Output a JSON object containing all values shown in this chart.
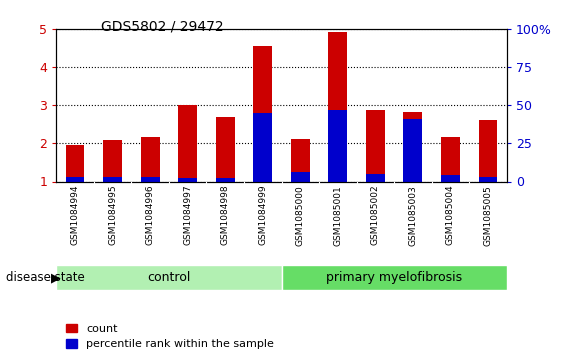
{
  "title": "GDS5802 / 29472",
  "samples": [
    "GSM1084994",
    "GSM1084995",
    "GSM1084996",
    "GSM1084997",
    "GSM1084998",
    "GSM1084999",
    "GSM1085000",
    "GSM1085001",
    "GSM1085002",
    "GSM1085003",
    "GSM1085004",
    "GSM1085005"
  ],
  "count_values": [
    1.96,
    2.08,
    2.18,
    3.02,
    2.68,
    4.55,
    2.12,
    4.92,
    2.88,
    2.82,
    2.16,
    2.62
  ],
  "percentile_values": [
    3,
    3,
    3,
    2,
    2,
    45,
    6,
    47,
    5,
    41,
    4,
    3
  ],
  "bar_bottom": 1.0,
  "ylim": [
    1.0,
    5.0
  ],
  "yticks": [
    1,
    2,
    3,
    4,
    5
  ],
  "ytick_labels": [
    "1",
    "2",
    "3",
    "4",
    "5"
  ],
  "right_ytick_labels": [
    "0",
    "25",
    "50",
    "75",
    "100%"
  ],
  "bar_color": "#cc0000",
  "percentile_color": "#0000cc",
  "bar_width": 0.5,
  "n_control": 6,
  "n_myelo": 6,
  "control_label": "control",
  "myelofibrosis_label": "primary myelofibrosis",
  "disease_state_label": "disease state",
  "control_bg": "#b2f0b2",
  "myelo_bg": "#66dd66",
  "tick_area_bg": "#c8c8c8",
  "legend_count_label": "count",
  "legend_percentile_label": "percentile rank within the sample"
}
